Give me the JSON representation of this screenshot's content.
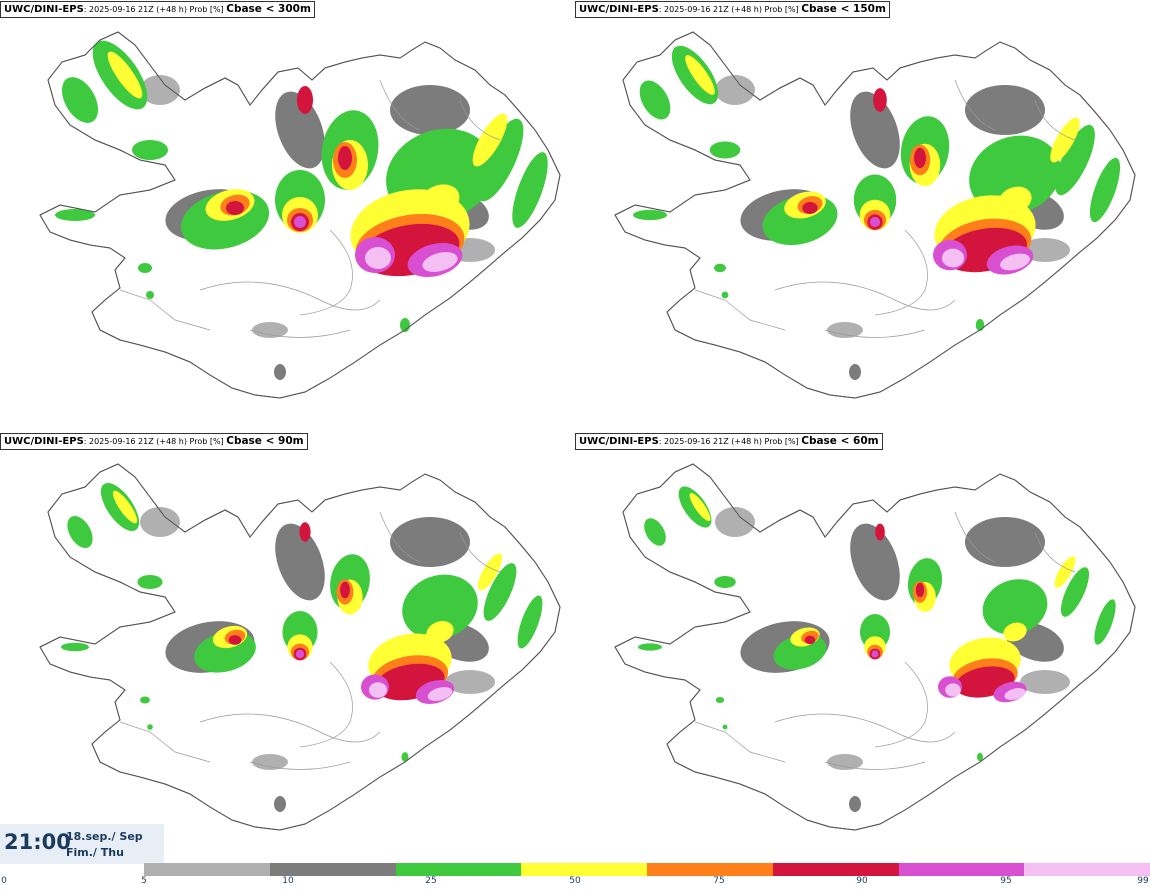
{
  "panels": [
    {
      "model": "UWC/DINI-EPS",
      "run": ": 2025-09-16 21Z (+48 h) Prob [%] ",
      "field": "Cbase < 300m"
    },
    {
      "model": "UWC/DINI-EPS",
      "run": ": 2025-09-16 21Z (+48 h) Prob [%] ",
      "field": "Cbase < 150m"
    },
    {
      "model": "UWC/DINI-EPS",
      "run": ": 2025-09-16 21Z (+48 h) Prob [%] ",
      "field": "Cbase < 90m"
    },
    {
      "model": "UWC/DINI-EPS",
      "run": ": 2025-09-16 21Z (+48 h) Prob [%] ",
      "field": "Cbase < 60m"
    }
  ],
  "timestamp": {
    "time": "21:00",
    "date_line1": "18.sep./ Sep",
    "date_line2": "Fim./ Thu"
  },
  "legend": {
    "ticks": [
      "0",
      "5",
      "10",
      "25",
      "50",
      "75",
      "90",
      "95",
      "99"
    ],
    "colors": [
      "#b0b0b0",
      "#7c7c7c",
      "#3ec93e",
      "#ffff33",
      "#ff7f1a",
      "#d3143c",
      "#d94fd1",
      "#f4c0f4"
    ]
  }
}
